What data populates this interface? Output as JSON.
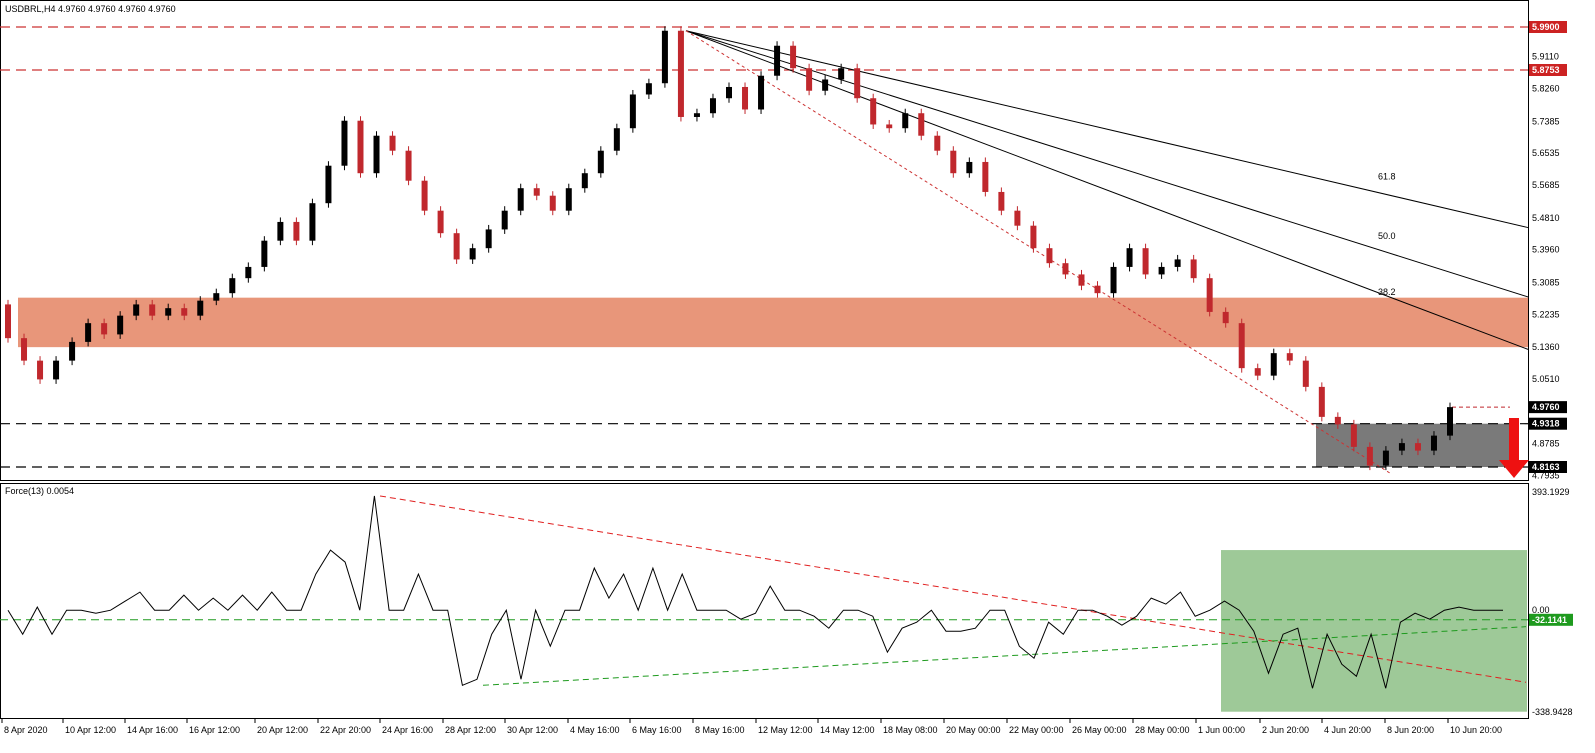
{
  "header": {
    "symbol_info": "USDBRL,H4  4.9760 4.9760 4.9760 4.9760",
    "indicator_info": "Force(13) 0.0054"
  },
  "colors": {
    "bull": "#000000",
    "bear": "#c0282d",
    "resistance": "#cc3333",
    "zone": "#e8967a",
    "support_box": "#7a7a7a",
    "force_box": "#8dbf86",
    "force_trend_down": "#e02020",
    "force_trend_up": "#1e9a1e",
    "arrow": "#ee1111"
  },
  "chart_data": [
    {
      "type": "candlestick",
      "symbol": "USDBRL",
      "timeframe": "H4",
      "ylim": [
        4.7935,
        5.99
      ],
      "y_ticks": [
        "5.9900",
        "5.9110",
        "5.8753",
        "5.8260",
        "5.7385",
        "5.6535",
        "5.5685",
        "5.4810",
        "5.3960",
        "5.3085",
        "5.2235",
        "5.1360",
        "5.0510",
        "4.9760",
        "4.9318",
        "4.8785",
        "4.8163",
        "4.7935"
      ],
      "price_labels": [
        {
          "name": "resistance-high",
          "value": "5.9900",
          "kind": "red"
        },
        {
          "name": "resistance-mid",
          "value": "5.8753",
          "kind": "red"
        },
        {
          "name": "current-price",
          "value": "4.9760",
          "kind": "black"
        },
        {
          "name": "support-upper",
          "value": "4.9318",
          "kind": "black"
        },
        {
          "name": "support-lower",
          "value": "4.8163",
          "kind": "black"
        }
      ],
      "horizontal_levels": {
        "resistance": [
          5.99,
          5.8753
        ],
        "support": [
          4.9318,
          4.8163
        ]
      },
      "zone": {
        "from": 5.136,
        "to": 5.268
      },
      "fib_labels": [
        "38.2",
        "50.0",
        "61.8"
      ],
      "x_labels": [
        "8 Apr 2020",
        "10 Apr 12:00",
        "14 Apr 16:00",
        "16 Apr 12:00",
        "20 Apr 12:00",
        "22 Apr 20:00",
        "24 Apr 16:00",
        "28 Apr 12:00",
        "30 Apr 12:00",
        "4 May 16:00",
        "6 May 16:00",
        "8 May 16:00",
        "12 May 12:00",
        "14 May 12:00",
        "18 May 08:00",
        "20 May 00:00",
        "22 May 00:00",
        "26 May 00:00",
        "28 May 00:00",
        "1 Jun 00:00",
        "2 Jun 20:00",
        "4 Jun 20:00",
        "8 Jun 20:00",
        "10 Jun 20:00"
      ],
      "close_path": [
        [
          5.25,
          5.16
        ],
        [
          5.16,
          5.1
        ],
        [
          5.1,
          5.05
        ],
        [
          5.05,
          5.1
        ],
        [
          5.1,
          5.15
        ],
        [
          5.15,
          5.2
        ],
        [
          5.2,
          5.17
        ],
        [
          5.17,
          5.22
        ],
        [
          5.22,
          5.25
        ],
        [
          5.25,
          5.22
        ],
        [
          5.22,
          5.24
        ],
        [
          5.24,
          5.22
        ],
        [
          5.22,
          5.26
        ],
        [
          5.26,
          5.28
        ],
        [
          5.28,
          5.32
        ],
        [
          5.32,
          5.35
        ],
        [
          5.35,
          5.42
        ],
        [
          5.42,
          5.47
        ],
        [
          5.47,
          5.42
        ],
        [
          5.42,
          5.52
        ],
        [
          5.52,
          5.62
        ],
        [
          5.62,
          5.74
        ],
        [
          5.74,
          5.6
        ],
        [
          5.6,
          5.7
        ],
        [
          5.7,
          5.66
        ],
        [
          5.66,
          5.58
        ],
        [
          5.58,
          5.5
        ],
        [
          5.5,
          5.44
        ],
        [
          5.44,
          5.37
        ],
        [
          5.37,
          5.4
        ],
        [
          5.4,
          5.45
        ],
        [
          5.45,
          5.5
        ],
        [
          5.5,
          5.56
        ],
        [
          5.56,
          5.54
        ],
        [
          5.54,
          5.5
        ],
        [
          5.5,
          5.56
        ],
        [
          5.56,
          5.6
        ],
        [
          5.6,
          5.66
        ],
        [
          5.66,
          5.72
        ],
        [
          5.72,
          5.81
        ],
        [
          5.81,
          5.84
        ],
        [
          5.84,
          5.98
        ],
        [
          5.98,
          5.75
        ],
        [
          5.75,
          5.76
        ],
        [
          5.76,
          5.8
        ],
        [
          5.8,
          5.83
        ],
        [
          5.83,
          5.77
        ],
        [
          5.77,
          5.86
        ],
        [
          5.86,
          5.94
        ],
        [
          5.94,
          5.88
        ],
        [
          5.88,
          5.82
        ],
        [
          5.82,
          5.85
        ],
        [
          5.85,
          5.88
        ],
        [
          5.88,
          5.8
        ],
        [
          5.8,
          5.73
        ],
        [
          5.73,
          5.72
        ],
        [
          5.72,
          5.76
        ],
        [
          5.76,
          5.7
        ],
        [
          5.7,
          5.66
        ],
        [
          5.66,
          5.6
        ],
        [
          5.6,
          5.63
        ],
        [
          5.63,
          5.55
        ],
        [
          5.55,
          5.5
        ],
        [
          5.5,
          5.46
        ],
        [
          5.46,
          5.4
        ],
        [
          5.4,
          5.36
        ],
        [
          5.36,
          5.33
        ],
        [
          5.33,
          5.3
        ],
        [
          5.3,
          5.28
        ],
        [
          5.28,
          5.35
        ],
        [
          5.35,
          5.4
        ],
        [
          5.4,
          5.33
        ],
        [
          5.33,
          5.35
        ],
        [
          5.35,
          5.37
        ],
        [
          5.37,
          5.32
        ],
        [
          5.32,
          5.23
        ],
        [
          5.23,
          5.2
        ],
        [
          5.2,
          5.08
        ],
        [
          5.08,
          5.06
        ],
        [
          5.06,
          5.12
        ],
        [
          5.12,
          5.1
        ],
        [
          5.1,
          5.03
        ],
        [
          5.03,
          4.95
        ],
        [
          4.95,
          4.93
        ],
        [
          4.93,
          4.87
        ],
        [
          4.87,
          4.82
        ],
        [
          4.82,
          4.86
        ],
        [
          4.86,
          4.88
        ],
        [
          4.88,
          4.86
        ],
        [
          4.86,
          4.9
        ],
        [
          4.9,
          4.976
        ]
      ],
      "force_index": {
        "name": "Force(13)",
        "ylim": [
          -338.9428,
          393.1929
        ],
        "ticks": [
          "393.1929",
          "0.00",
          "-32.1141",
          "-338.9428"
        ],
        "series": [
          0,
          -80,
          10,
          -80,
          0,
          0,
          -10,
          0,
          30,
          60,
          0,
          0,
          50,
          0,
          40,
          0,
          50,
          0,
          60,
          0,
          0,
          120,
          200,
          160,
          0,
          380,
          0,
          0,
          120,
          0,
          0,
          -250,
          -230,
          -80,
          0,
          -230,
          0,
          -120,
          0,
          0,
          140,
          40,
          120,
          0,
          140,
          0,
          120,
          0,
          0,
          0,
          -30,
          -10,
          80,
          0,
          0,
          -20,
          -60,
          0,
          0,
          -20,
          -140,
          -60,
          -40,
          0,
          -70,
          -70,
          -60,
          0,
          0,
          -120,
          -160,
          -40,
          -80,
          0,
          0,
          -20,
          -50,
          -20,
          40,
          20,
          60,
          -20,
          0,
          30,
          0,
          -70,
          -210,
          -80,
          -60,
          -260,
          -80,
          -180,
          -220,
          -80,
          -260,
          -40,
          -10,
          -30,
          0,
          10,
          0,
          0,
          0
        ],
        "level_dashed": -32.1141
      },
      "annotations": {
        "trend_down": "red",
        "trend_up": "green",
        "highlight_box": "green"
      }
    }
  ]
}
